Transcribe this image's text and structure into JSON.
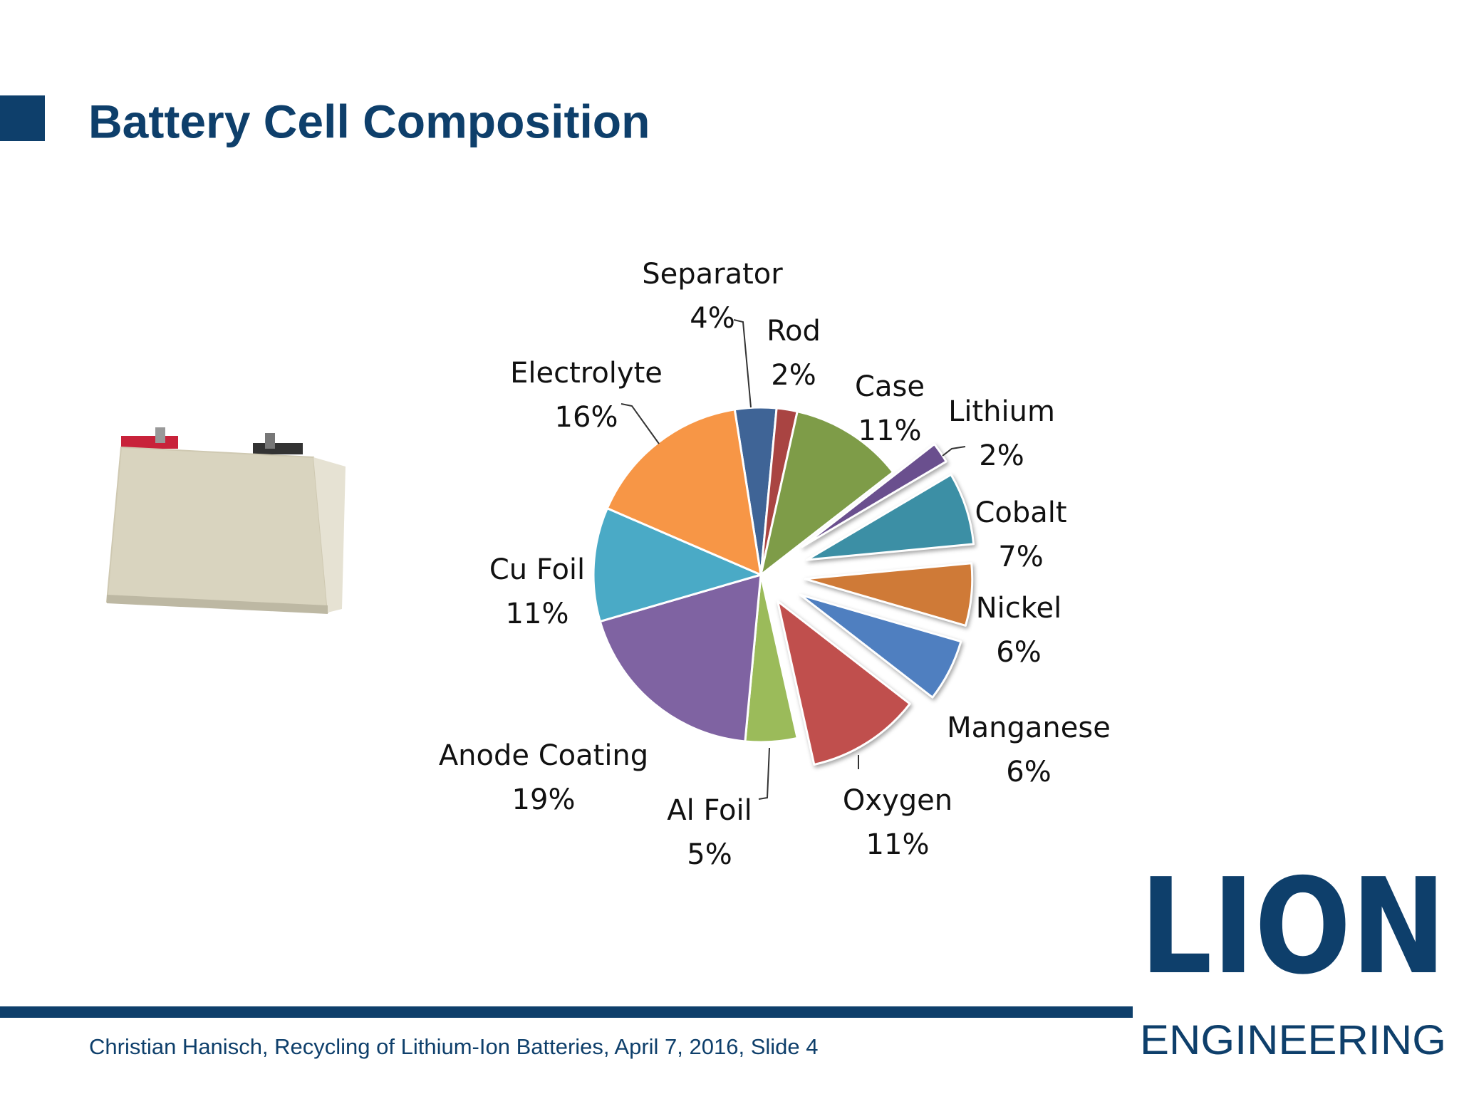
{
  "header": {
    "title": "Battery Cell Composition"
  },
  "chart_data": {
    "type": "pie",
    "categories": [
      "Separator",
      "Rod",
      "Case",
      "Lithium",
      "Cobalt",
      "Nickel",
      "Manganese",
      "Oxygen",
      "Al Foil",
      "Anode Coating",
      "Cu Foil",
      "Electrolyte"
    ],
    "values": [
      4,
      2,
      11,
      2,
      7,
      6,
      6,
      11,
      5,
      19,
      11,
      16
    ],
    "value_labels": [
      "4%",
      "2%",
      "11%",
      "2%",
      "7%",
      "6%",
      "6%",
      "11%",
      "5%",
      "19%",
      "11%",
      "16%"
    ],
    "colors": [
      "#3f6496",
      "#a94442",
      "#7e9c48",
      "#6a4f8e",
      "#3c8fa5",
      "#cf7a37",
      "#4f7fc0",
      "#c04f4d",
      "#9bbb5a",
      "#7f63a2",
      "#4aaac6",
      "#f79646"
    ]
  },
  "footer": {
    "text": "Christian Hanisch, Recycling of Lithium-Ion Batteries, April 7, 2016, Slide 4"
  },
  "logo": {
    "name": "LION",
    "tagline": "ENGINEERING"
  }
}
